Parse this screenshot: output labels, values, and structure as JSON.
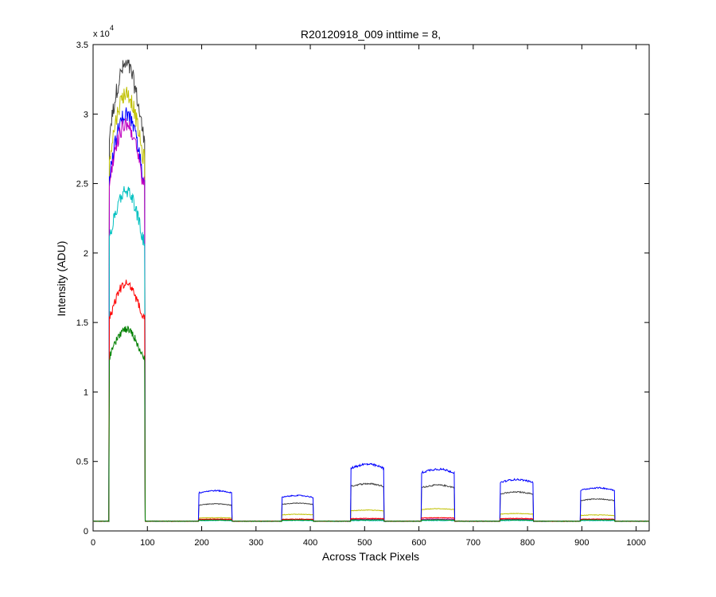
{
  "chart_data": {
    "type": "line",
    "title": "R20120918_009 inttime = 8,",
    "xlabel": "Across Track Pixels",
    "ylabel": "Intensity (ADU)",
    "y_exponent_label": "x 10",
    "y_exponent_power": "4",
    "xlim": [
      0,
      1024
    ],
    "ylim": [
      0,
      35000
    ],
    "xticks": [
      0,
      100,
      200,
      300,
      400,
      500,
      600,
      700,
      800,
      900,
      1000
    ],
    "yticks": [
      0,
      5000,
      10000,
      15000,
      20000,
      25000,
      30000,
      35000
    ],
    "ytick_labels": [
      "0",
      "0.5",
      "1",
      "1.5",
      "2",
      "2.5",
      "3",
      "3.5"
    ],
    "grid": false,
    "baseline": 700,
    "plateau_edges": [
      [
        30,
        95
      ],
      [
        195,
        255
      ],
      [
        348,
        405
      ],
      [
        475,
        535
      ],
      [
        605,
        665
      ],
      [
        750,
        810
      ],
      [
        898,
        960
      ]
    ],
    "series": [
      {
        "color": "#404040",
        "plateau_peaks": [
          33500,
          1950,
          2000,
          3400,
          3300,
          2800,
          2300
        ]
      },
      {
        "color": "#c0c000",
        "plateau_peaks": [
          31500,
          950,
          1200,
          1500,
          1600,
          1250,
          1150
        ]
      },
      {
        "color": "#0000ff",
        "plateau_peaks": [
          30000,
          2900,
          2550,
          4800,
          4450,
          3700,
          3100
        ]
      },
      {
        "color": "#c000c0",
        "plateau_peaks": [
          29300,
          800,
          800,
          850,
          850,
          850,
          850
        ]
      },
      {
        "color": "#00c0c0",
        "plateau_peaks": [
          24500,
          750,
          750,
          750,
          750,
          750,
          750
        ]
      },
      {
        "color": "#ff0000",
        "plateau_peaks": [
          17800,
          850,
          850,
          900,
          950,
          900,
          850
        ]
      },
      {
        "color": "#008000",
        "plateau_peaks": [
          14500,
          780,
          780,
          800,
          800,
          800,
          800
        ]
      }
    ]
  }
}
